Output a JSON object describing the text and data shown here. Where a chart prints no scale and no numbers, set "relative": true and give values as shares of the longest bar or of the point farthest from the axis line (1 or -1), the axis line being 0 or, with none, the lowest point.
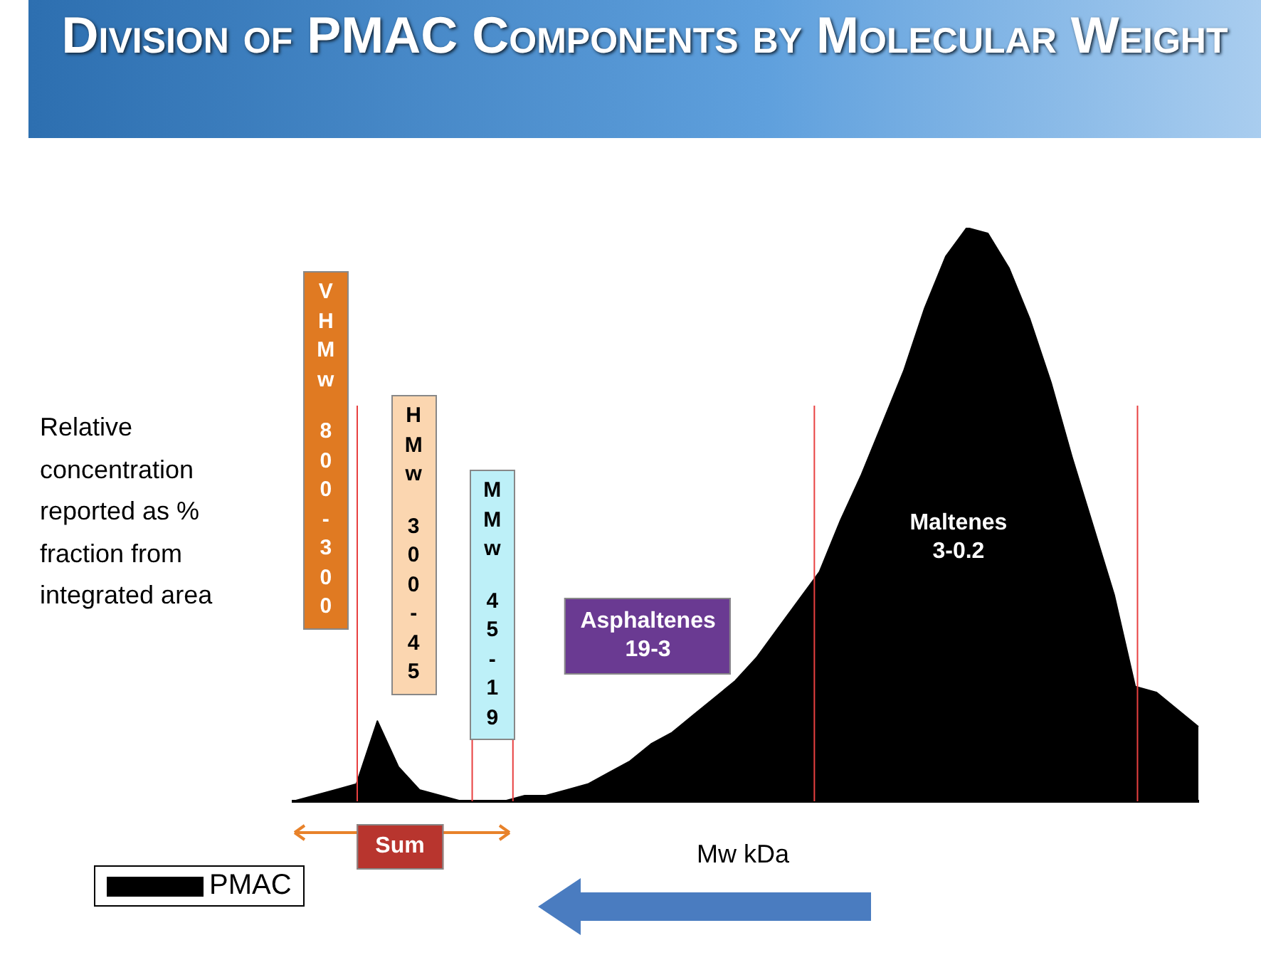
{
  "chart_data": {
    "type": "area",
    "title": "Division of PMAC Components by Molecular Weight",
    "xlabel": "Mw kDa",
    "ylabel": "Relative concentration reported as % fraction from integrated area",
    "relative": true,
    "legend": "bottom left",
    "categories": [
      null,
      null,
      null,
      null,
      null,
      null,
      null,
      null,
      null,
      null,
      null,
      null,
      null,
      null,
      null,
      null,
      null,
      null,
      null,
      null,
      null,
      null,
      null,
      null,
      null,
      null,
      null,
      null,
      null,
      null,
      null,
      null,
      null,
      null,
      null,
      null,
      null,
      null,
      null,
      null,
      null,
      null,
      null,
      null
    ],
    "series": [
      {
        "name": "PMAC",
        "color": "#000000",
        "values": [
          0,
          0.01,
          0.02,
          0.03,
          0.14,
          0.06,
          0.02,
          0.01,
          0,
          0,
          0,
          0.01,
          0.01,
          0.02,
          0.03,
          0.05,
          0.07,
          0.1,
          0.12,
          0.15,
          0.18,
          0.21,
          0.25,
          0.3,
          0.35,
          0.4,
          0.49,
          0.57,
          0.66,
          0.75,
          0.86,
          0.95,
          1,
          0.99,
          0.93,
          0.84,
          0.73,
          0.6,
          0.48,
          0.36,
          0.2,
          0.19,
          0.16,
          0.13
        ]
      }
    ],
    "annotations": [
      "VHMw 800-300",
      "HMw 300-45",
      "MMw 45-19",
      "Asphaltenes 19-3",
      "Maltenes 3-0.2",
      "Sum"
    ]
  }
}
